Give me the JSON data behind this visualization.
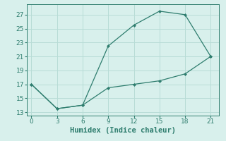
{
  "xlabel": "Humidex (Indice chaleur)",
  "line1_x": [
    0,
    3,
    6,
    9,
    12,
    15,
    18,
    21
  ],
  "line1_y": [
    17,
    13.5,
    14,
    22.5,
    25.5,
    27.5,
    27,
    21
  ],
  "line2_x": [
    0,
    3,
    6,
    9,
    12,
    15,
    18,
    21
  ],
  "line2_y": [
    17,
    13.5,
    14,
    16.5,
    17,
    17.5,
    18.5,
    21
  ],
  "line_color": "#2e7d6e",
  "bg_color": "#d8f0ec",
  "grid_color": "#b8dcd6",
  "xlim": [
    -0.5,
    22
  ],
  "ylim": [
    12.5,
    28.5
  ],
  "xticks": [
    0,
    3,
    6,
    9,
    12,
    15,
    18,
    21
  ],
  "yticks": [
    13,
    15,
    17,
    19,
    21,
    23,
    25,
    27
  ],
  "tick_fontsize": 6.5,
  "label_fontsize": 7.5
}
